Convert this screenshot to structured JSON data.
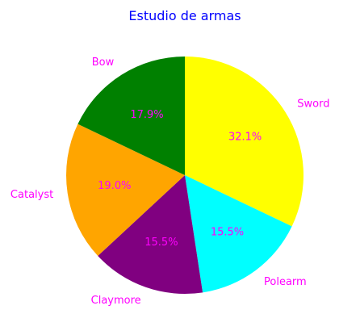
{
  "chart_data": {
    "type": "pie",
    "title": "Estudio de armas",
    "slices": [
      {
        "label": "Sword",
        "value": 32.1,
        "percent_label": "32.1%",
        "color": "#ffff00"
      },
      {
        "label": "Polearm",
        "value": 15.5,
        "percent_label": "15.5%",
        "color": "#00ffff"
      },
      {
        "label": "Claymore",
        "value": 15.5,
        "percent_label": "15.5%",
        "color": "#800080"
      },
      {
        "label": "Catalyst",
        "value": 19.0,
        "percent_label": "19.0%",
        "color": "#ffa500"
      },
      {
        "label": "Bow",
        "value": 17.9,
        "percent_label": "17.9%",
        "color": "#008000"
      }
    ],
    "start_angle_deg": 90,
    "direction": "clockwise",
    "title_color": "#0000ff",
    "label_color": "#ff00ff"
  }
}
